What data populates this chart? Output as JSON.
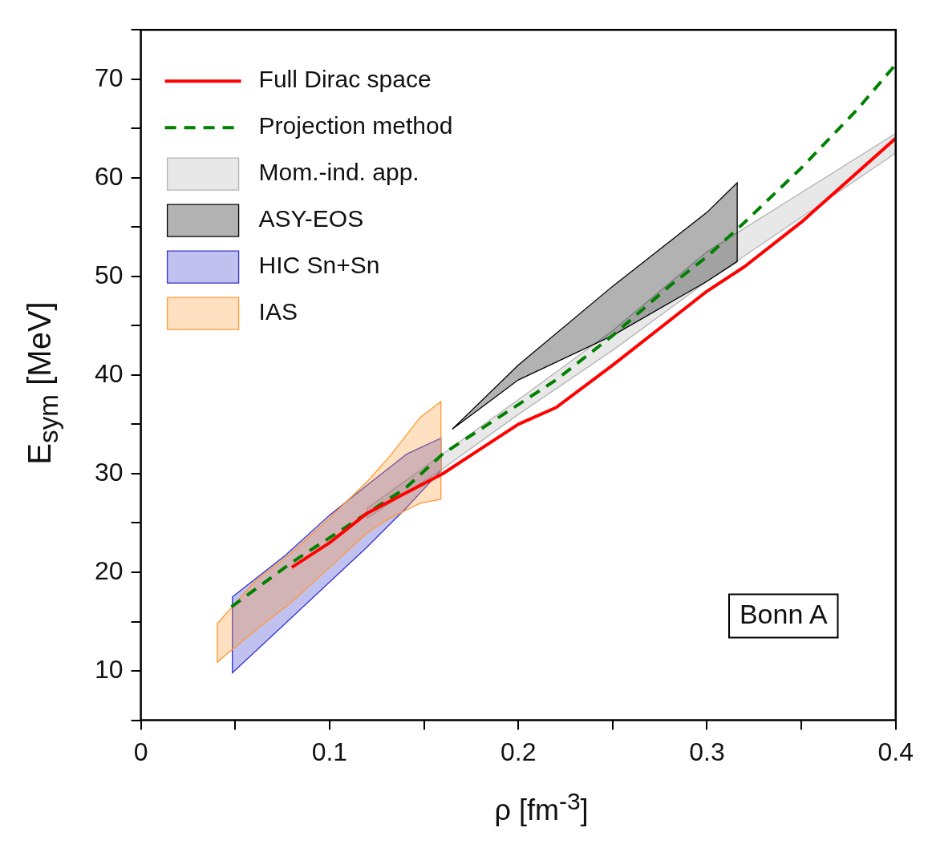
{
  "chart_data": {
    "type": "line",
    "xlabel": "ρ [fm$^{-3}$]",
    "ylabel": "E$_{sym}$ [MeV]",
    "xlim": [
      0,
      0.4
    ],
    "ylim": [
      5,
      75
    ],
    "xticks": [
      0,
      {
        "value": 0.05,
        "label": null
      },
      0.1,
      {
        "value": 0.15,
        "label": null
      },
      0.2,
      {
        "value": 0.25,
        "label": null
      },
      0.3,
      {
        "value": 0.35,
        "label": null
      },
      0.4
    ],
    "yticks": [
      {
        "value": 5,
        "label": null
      },
      10,
      {
        "value": 15,
        "label": null
      },
      20,
      {
        "value": 25,
        "label": null
      },
      30,
      {
        "value": 35,
        "label": null
      },
      40,
      {
        "value": 45,
        "label": null
      },
      50,
      {
        "value": 55,
        "label": null
      },
      60,
      {
        "value": 65,
        "label": null
      },
      70,
      {
        "value": 75,
        "label": null
      }
    ],
    "legend": "top left",
    "annotations": [
      "Bonn A"
    ],
    "series": [
      {
        "name": "Full Dirac space",
        "color": "#ff0000",
        "line_style": "solid",
        "x": [
          0.08,
          0.1,
          0.12,
          0.14,
          0.16,
          0.18,
          0.2,
          0.22,
          0.25,
          0.28,
          0.3,
          0.32,
          0.35,
          0.4
        ],
        "values": [
          20.5,
          23,
          26,
          28,
          30,
          32.5,
          35,
          36.7,
          41,
          45.5,
          48.5,
          51,
          55.5,
          64
        ]
      },
      {
        "name": "Projection method",
        "color": "#008000",
        "line_style": "dashed",
        "x": [
          0.048,
          0.08,
          0.1,
          0.12,
          0.14,
          0.16,
          0.18,
          0.2,
          0.22,
          0.25,
          0.28,
          0.3,
          0.32,
          0.35,
          0.38,
          0.4
        ],
        "values": [
          16.5,
          21,
          23.5,
          26,
          28.5,
          32,
          34.5,
          37,
          39.5,
          44,
          49,
          52,
          55.5,
          61,
          67,
          71.5
        ]
      },
      {
        "name": "Mom.-ind. app.",
        "color": "#b3b3b3",
        "x": [
          0.12,
          0.16,
          0.2,
          0.25,
          0.3,
          0.35,
          0.4
        ],
        "values": [
          null,
          null,
          null,
          null,
          null,
          null,
          null
        ],
        "lower": [
          25.5,
          30.5,
          36,
          42.5,
          49.5,
          56,
          62.5
        ],
        "upper": [
          26.5,
          32,
          37.5,
          44.5,
          52.5,
          58.5,
          64.5
        ]
      },
      {
        "name": "ASY-EOS",
        "color": "#000000",
        "x": [
          0.165,
          0.2,
          0.25,
          0.3,
          0.316
        ],
        "values": [
          null,
          null,
          null,
          null,
          null
        ],
        "lower": [
          34.5,
          39.5,
          44,
          49.5,
          51.5
        ],
        "upper": [
          34.5,
          41,
          49,
          56.5,
          59.5
        ]
      },
      {
        "name": "HIC Sn+Sn",
        "color": "#3333cc",
        "x": [
          0.0485,
          0.0765,
          0.1,
          0.119,
          0.141,
          0.159
        ],
        "values": [
          null,
          null,
          null,
          null,
          null,
          null
        ],
        "lower": [
          9.8,
          14.8,
          19,
          22.4,
          26.6,
          30.3
        ],
        "upper": [
          17.5,
          21.7,
          25.8,
          28.7,
          32,
          33.6
        ]
      },
      {
        "name": "IAS",
        "color": "#ff9933",
        "x": [
          0.0405,
          0.06,
          0.08,
          0.1,
          0.12,
          0.132,
          0.148,
          0.159
        ],
        "values": [
          null,
          null,
          null,
          null,
          null,
          null,
          null,
          null
        ],
        "lower": [
          10.9,
          14,
          17,
          20.5,
          24,
          25.5,
          27,
          27.4
        ],
        "upper": [
          14.8,
          19,
          22,
          25.5,
          29.2,
          31.8,
          35.7,
          37.3
        ]
      }
    ]
  }
}
